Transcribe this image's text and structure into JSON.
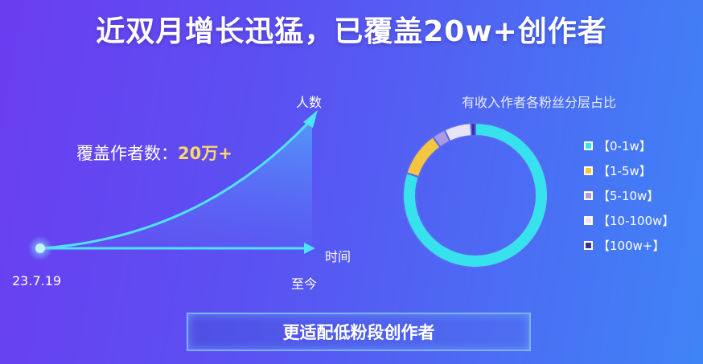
{
  "title": "近双月增长迅猛，已覆盖20w+创作者",
  "growth": {
    "y_axis_label": "人数",
    "x_axis_label": "时间",
    "start_label": "23.7.19",
    "end_label": "至今",
    "cover_label": "覆盖作者数：",
    "cover_value": "20万+"
  },
  "chart_data": {
    "type": "pie",
    "title": "有收入作者各粉丝分层占比",
    "categories": [
      "【0-1w】",
      "【1-5w】",
      "【5-10w】",
      "【10-100w】",
      "【100w+】"
    ],
    "values": [
      80,
      10,
      3,
      6,
      1
    ],
    "colors": [
      "#38e1ee",
      "#f5c542",
      "#a99be6",
      "#e8e4f8",
      "#3b2fa0"
    ],
    "legend_position": "right"
  },
  "button": {
    "label": "更适配低粉段创作者"
  }
}
